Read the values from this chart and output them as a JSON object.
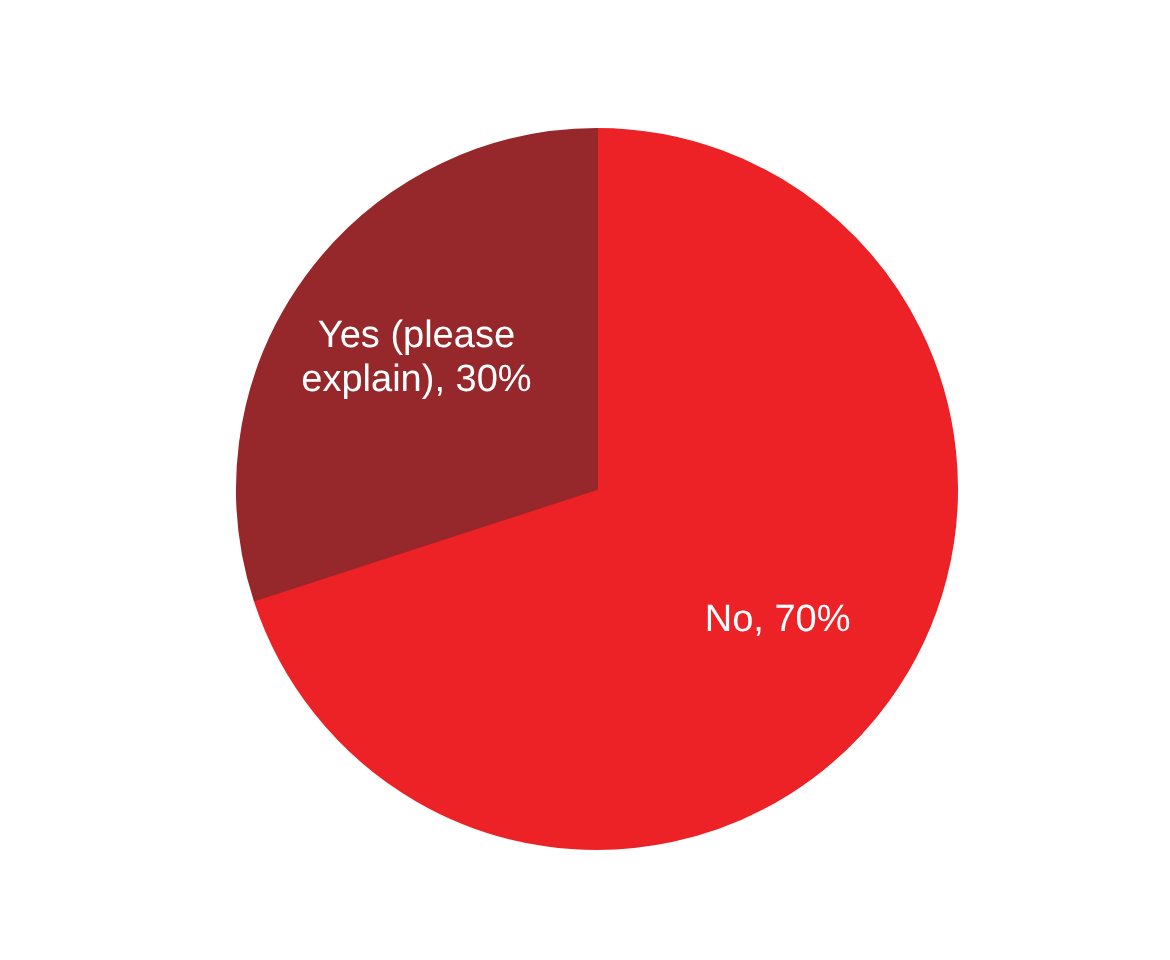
{
  "chart_data": {
    "type": "pie",
    "categories": [
      "No",
      "Yes (please explain)"
    ],
    "values": [
      70,
      30
    ],
    "value_labels": [
      "70%",
      "30%"
    ],
    "colors": [
      "#ec2227",
      "#96272a"
    ]
  }
}
